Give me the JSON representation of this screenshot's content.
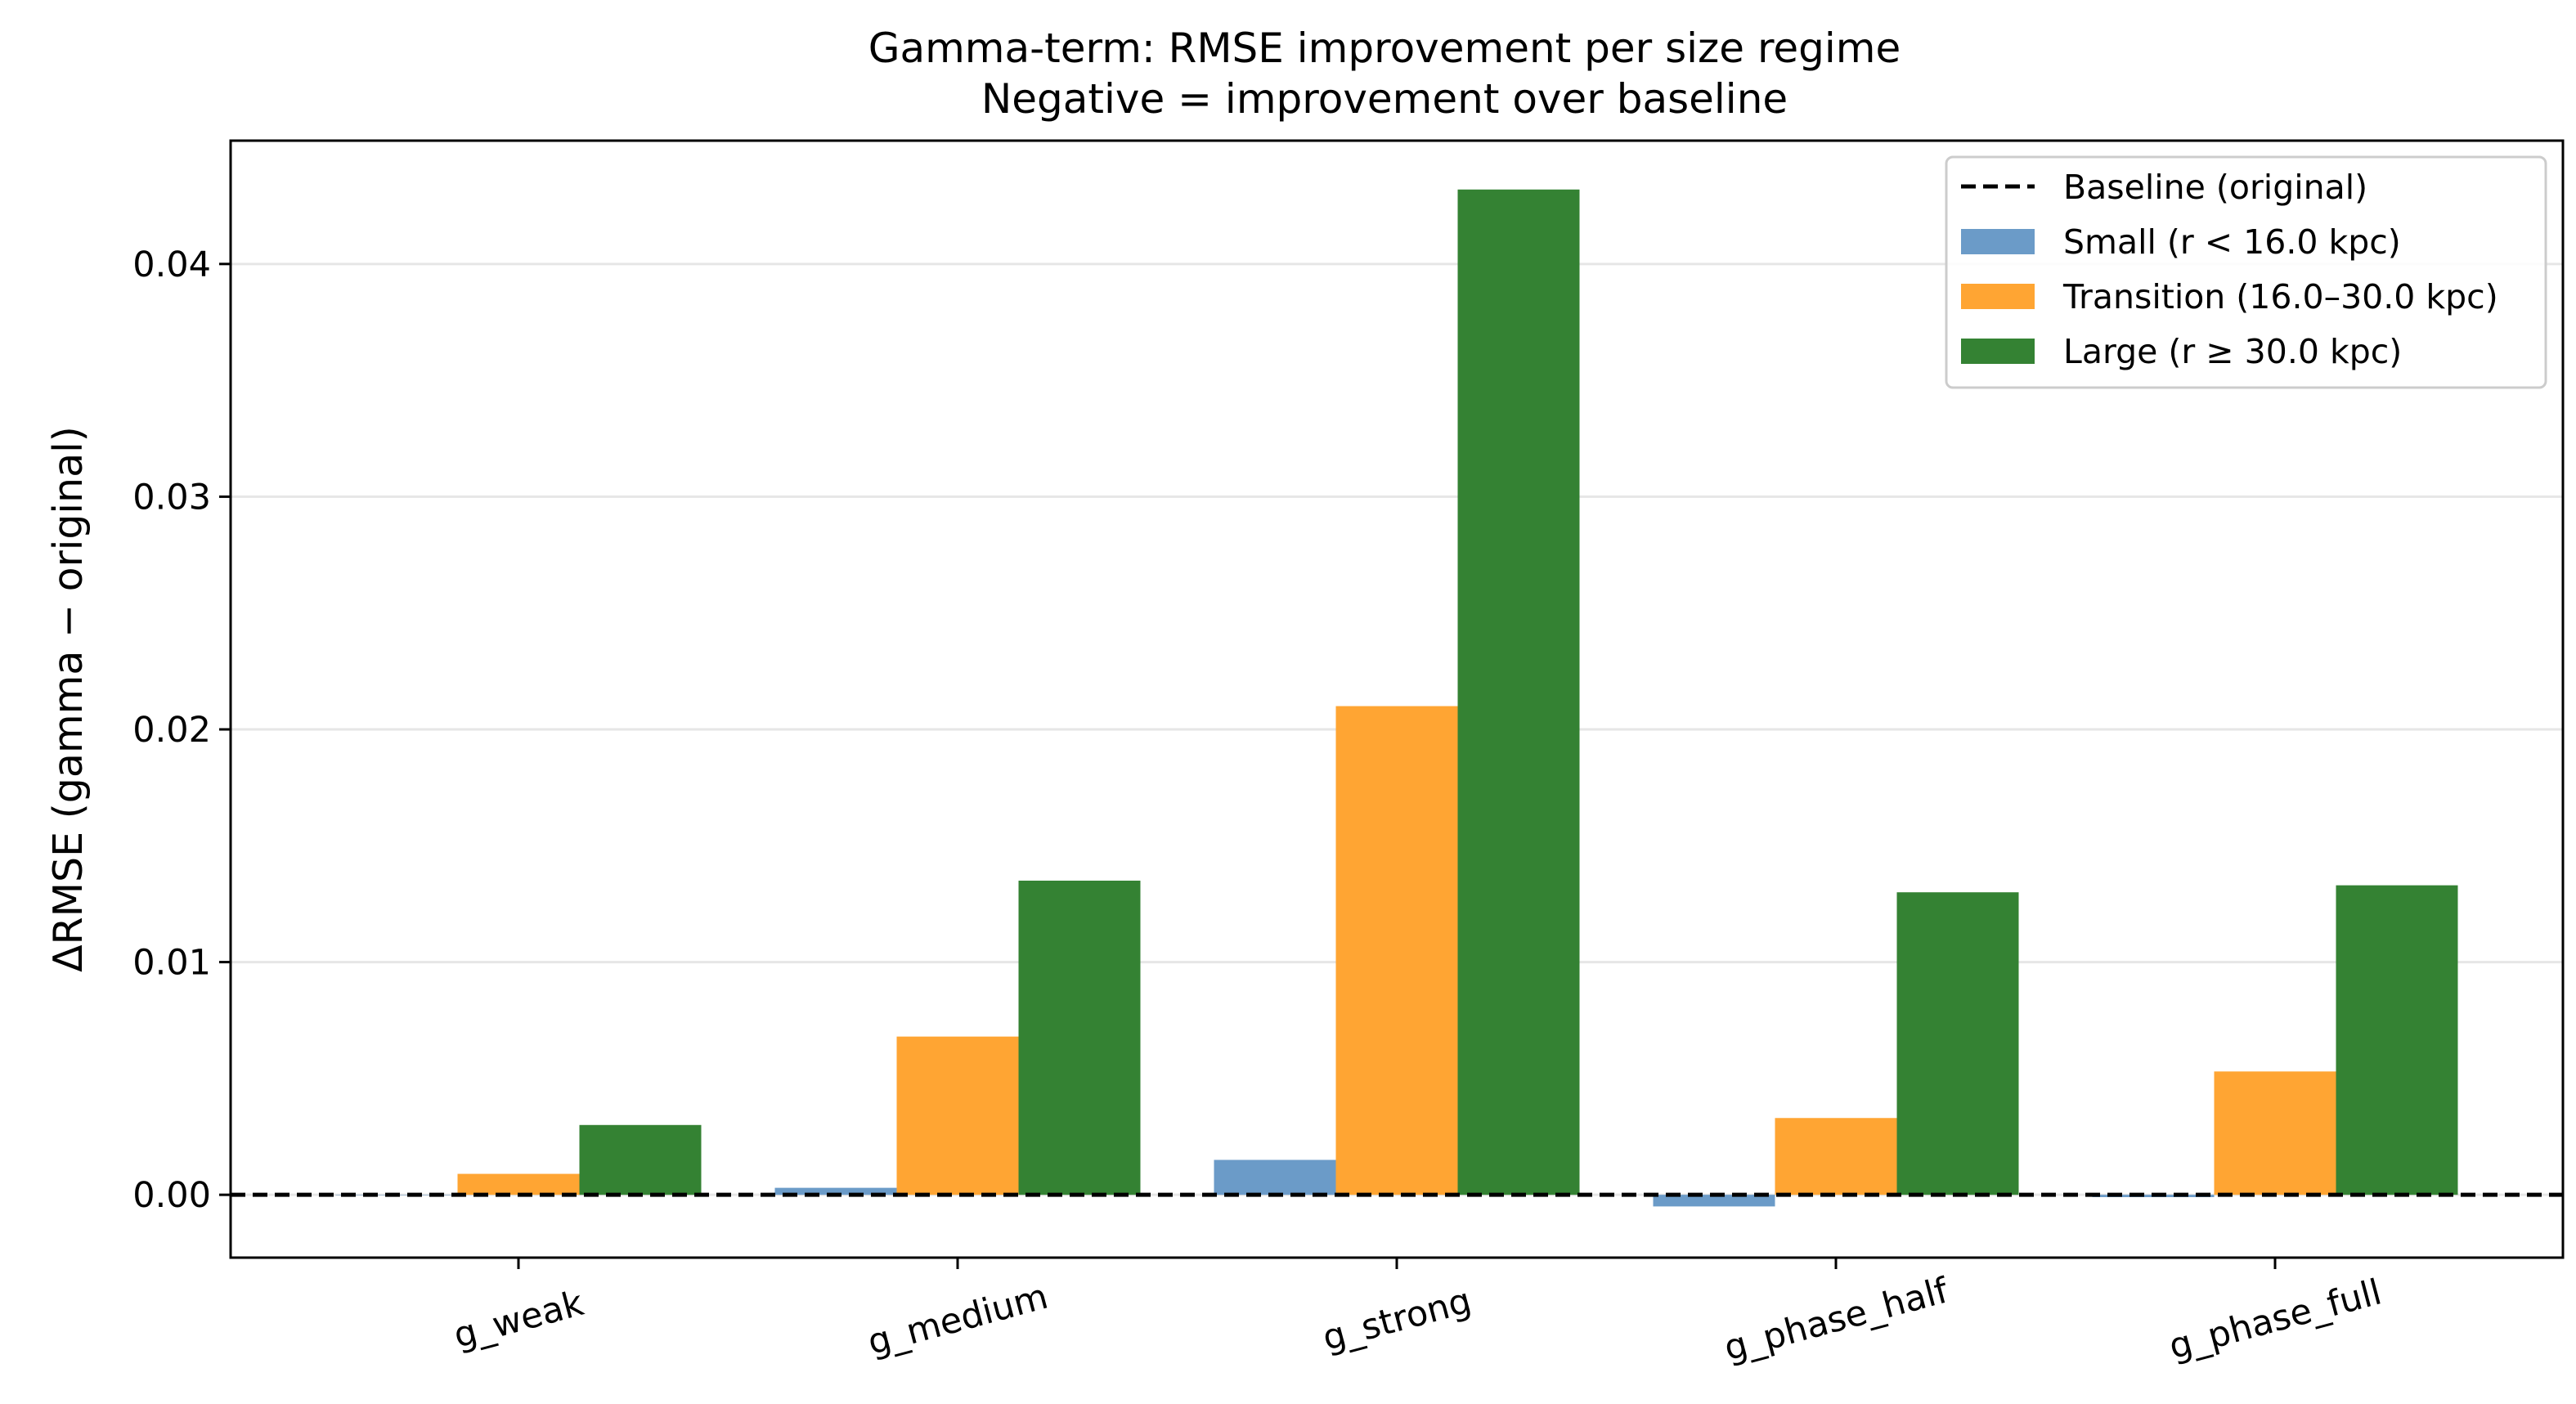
{
  "chart_data": {
    "type": "bar",
    "title": "Gamma-term: RMSE improvement per size regime",
    "subtitle": "Negative = improvement over baseline",
    "xlabel": "",
    "ylabel": "ΔRMSE (gamma − original)",
    "categories": [
      "g_weak",
      "g_medium",
      "g_strong",
      "g_phase_half",
      "g_phase_full"
    ],
    "series": [
      {
        "name": "Small (r < 16.0 kpc)",
        "color": "#6b9bc8",
        "values": [
          0.0,
          0.0003,
          0.0015,
          -0.0005,
          -0.0001
        ]
      },
      {
        "name": "Transition (16.0–30.0 kpc)",
        "color": "#ffa533",
        "values": [
          0.0009,
          0.0068,
          0.021,
          0.0033,
          0.0053
        ]
      },
      {
        "name": "Large (r ≥ 30.0 kpc)",
        "color": "#348233",
        "values": [
          0.003,
          0.0135,
          0.0432,
          0.013,
          0.0133
        ]
      }
    ],
    "baseline": {
      "name": "Baseline (original)",
      "value": 0.0,
      "style": "dashed",
      "color": "#000000"
    },
    "ylim": [
      -0.0027,
      0.0453
    ],
    "yticks": [
      0.0,
      0.01,
      0.02,
      0.03,
      0.04
    ],
    "ytick_labels": [
      "0.00",
      "0.01",
      "0.02",
      "0.03",
      "0.04"
    ],
    "grid": "horizontal",
    "legend_position": "top-right"
  }
}
